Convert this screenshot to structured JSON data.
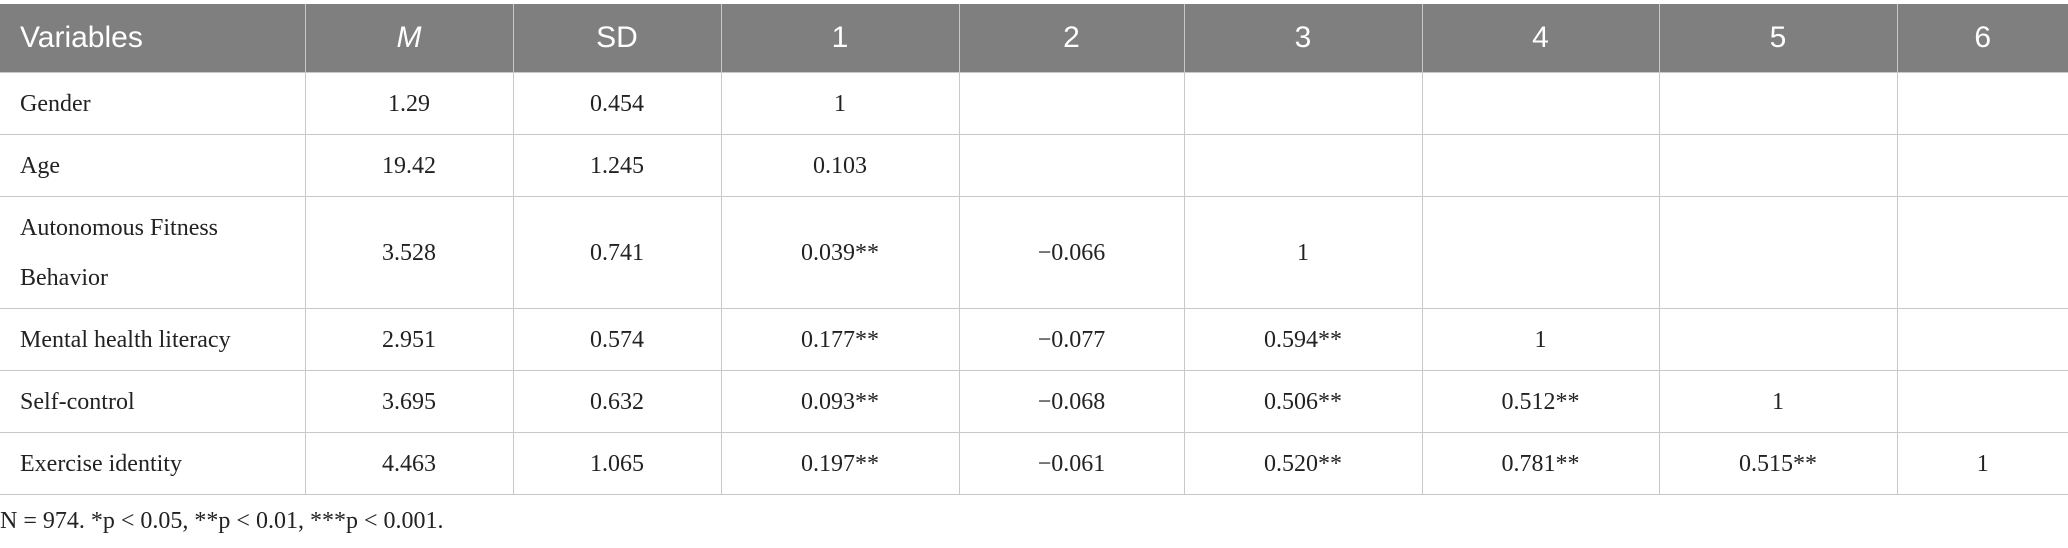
{
  "table": {
    "header": [
      "Variables",
      "M",
      "SD",
      "1",
      "2",
      "3",
      "4",
      "5",
      "6"
    ],
    "rows": [
      [
        "Gender",
        "1.29",
        "0.454",
        "1",
        null,
        null,
        null,
        null,
        null
      ],
      [
        "Age",
        "19.42",
        "1.245",
        "0.103",
        null,
        null,
        null,
        null,
        null
      ],
      [
        "Autonomous Fitness Behavior",
        "3.528",
        "0.741",
        "0.039**",
        "−0.066",
        "1",
        null,
        null,
        null
      ],
      [
        "Mental health literacy",
        "2.951",
        "0.574",
        "0.177**",
        "−0.077",
        "0.594**",
        "1",
        null,
        null
      ],
      [
        "Self-control",
        "3.695",
        "0.632",
        "0.093**",
        "−0.068",
        "0.506**",
        "0.512**",
        "1",
        null
      ],
      [
        "Exercise identity",
        "4.463",
        "1.065",
        "0.197**",
        "−0.061",
        "0.520**",
        "0.781**",
        "0.515**",
        "1"
      ]
    ]
  },
  "footnote": "N = 974. *p < 0.05, **p < 0.01, ***p < 0.001."
}
